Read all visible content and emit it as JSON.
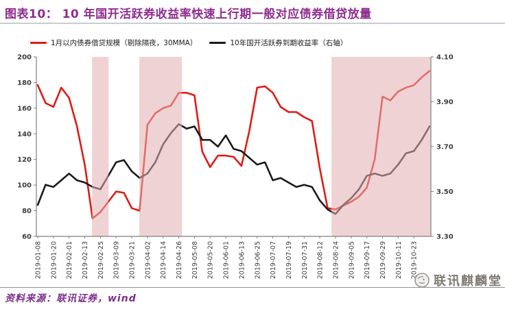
{
  "header": {
    "title": "图表10：  10 年国开活跃券收益率快速上行期一般对应债券借贷放量"
  },
  "footer": {
    "source": "资料来源：联讯证券，wind",
    "logo_text": "联讯麒麟堂"
  },
  "colors": {
    "title": "#8e2d8e",
    "lending_line": "#e01a14",
    "yield_line": "#1a1a1a",
    "band_fill": "rgb(227,176,178)",
    "axis": "#7f7f7f"
  },
  "chart_data": {
    "type": "line",
    "title": "10年国开活跃券收益率快速上行期一般对应债券借贷放量",
    "legend_position": "top",
    "grid": false,
    "x_dates": [
      "2019-01-08",
      "2019-01-14",
      "2019-01-20",
      "2019-01-26",
      "2019-02-01",
      "2019-02-07",
      "2019-02-13",
      "2019-02-19",
      "2019-02-25",
      "2019-03-03",
      "2019-03-09",
      "2019-03-15",
      "2019-03-21",
      "2019-03-27",
      "2019-04-02",
      "2019-04-08",
      "2019-04-14",
      "2019-04-20",
      "2019-04-26",
      "2019-05-02",
      "2019-05-08",
      "2019-05-14",
      "2019-05-20",
      "2019-05-26",
      "2019-06-01",
      "2019-06-07",
      "2019-06-13",
      "2019-06-19",
      "2019-06-25",
      "2019-07-01",
      "2019-07-07",
      "2019-07-13",
      "2019-07-19",
      "2019-07-25",
      "2019-07-31",
      "2019-08-06",
      "2019-08-12",
      "2019-08-18",
      "2019-08-24",
      "2019-08-30",
      "2019-09-05",
      "2019-09-11",
      "2019-09-17",
      "2019-09-23",
      "2019-09-29",
      "2019-10-05",
      "2019-10-11",
      "2019-10-17",
      "2019-10-23",
      "2019-10-29",
      "2019-11-04"
    ],
    "x_tick_labels": [
      "2019-01-08",
      "2019-01-20",
      "2019-02-01",
      "2019-02-13",
      "2019-02-25",
      "2019-03-09",
      "2019-03-21",
      "2019-04-02",
      "2019-04-14",
      "2019-04-26",
      "2019-05-08",
      "2019-05-20",
      "2019-06-01",
      "2019-06-13",
      "2019-06-25",
      "2019-07-07",
      "2019-07-19",
      "2019-07-31",
      "2019-08-12",
      "2019-08-24",
      "2019-09-05",
      "2019-09-17",
      "2019-09-29",
      "2019-10-11",
      "2019-10-23"
    ],
    "left_axis": {
      "min": 60,
      "max": 200,
      "ticks": [
        200,
        180,
        160,
        140,
        120,
        100,
        80,
        60
      ]
    },
    "right_axis": {
      "min": 3.3,
      "max": 4.1,
      "tick_labels": [
        "4.10",
        "3.90",
        "3.70",
        "3.50",
        "3.30"
      ],
      "ticks": [
        4.1,
        3.9,
        3.7,
        3.5,
        3.3
      ]
    },
    "series": [
      {
        "name": "1月以内债券借贷规模（剔除隔夜，30MMA）",
        "axis": "left",
        "color": "#e01a14",
        "values": [
          178,
          164,
          161,
          176,
          168,
          146,
          116,
          74,
          79,
          87,
          95,
          94,
          82,
          80,
          147,
          156,
          160,
          162,
          172,
          172,
          170,
          126,
          114,
          123,
          123,
          122,
          115,
          142,
          176,
          177,
          172,
          161,
          157,
          157,
          153,
          150,
          113,
          82,
          81,
          84,
          87,
          91,
          98,
          120,
          169,
          166,
          173,
          176,
          178,
          184,
          189
        ]
      },
      {
        "name": "10年国开活跃券到期收益率（右轴）",
        "axis": "right",
        "color": "#1a1a1a",
        "values": [
          3.44,
          3.53,
          3.52,
          3.55,
          3.58,
          3.55,
          3.54,
          3.52,
          3.51,
          3.57,
          3.63,
          3.64,
          3.59,
          3.56,
          3.58,
          3.63,
          3.71,
          3.76,
          3.8,
          3.78,
          3.79,
          3.73,
          3.73,
          3.7,
          3.75,
          3.69,
          3.68,
          3.65,
          3.62,
          3.63,
          3.55,
          3.56,
          3.54,
          3.52,
          3.53,
          3.52,
          3.46,
          3.42,
          3.4,
          3.44,
          3.47,
          3.51,
          3.57,
          3.58,
          3.57,
          3.58,
          3.62,
          3.67,
          3.68,
          3.73,
          3.79
        ]
      }
    ],
    "shaded_bands": [
      {
        "approx_start": "2019-02-18",
        "approx_end": "2019-03-03",
        "start_frac": 0.141,
        "end_frac": 0.183
      },
      {
        "approx_start": "2019-03-29",
        "approx_end": "2019-05-01",
        "start_frac": 0.261,
        "end_frac": 0.369
      },
      {
        "approx_start": "2019-08-20",
        "approx_end": "2019-11-04",
        "start_frac": 0.748,
        "end_frac": 1.0
      }
    ],
    "band_color": "rgb(227,176,178)",
    "band_opacity": 0.56
  }
}
